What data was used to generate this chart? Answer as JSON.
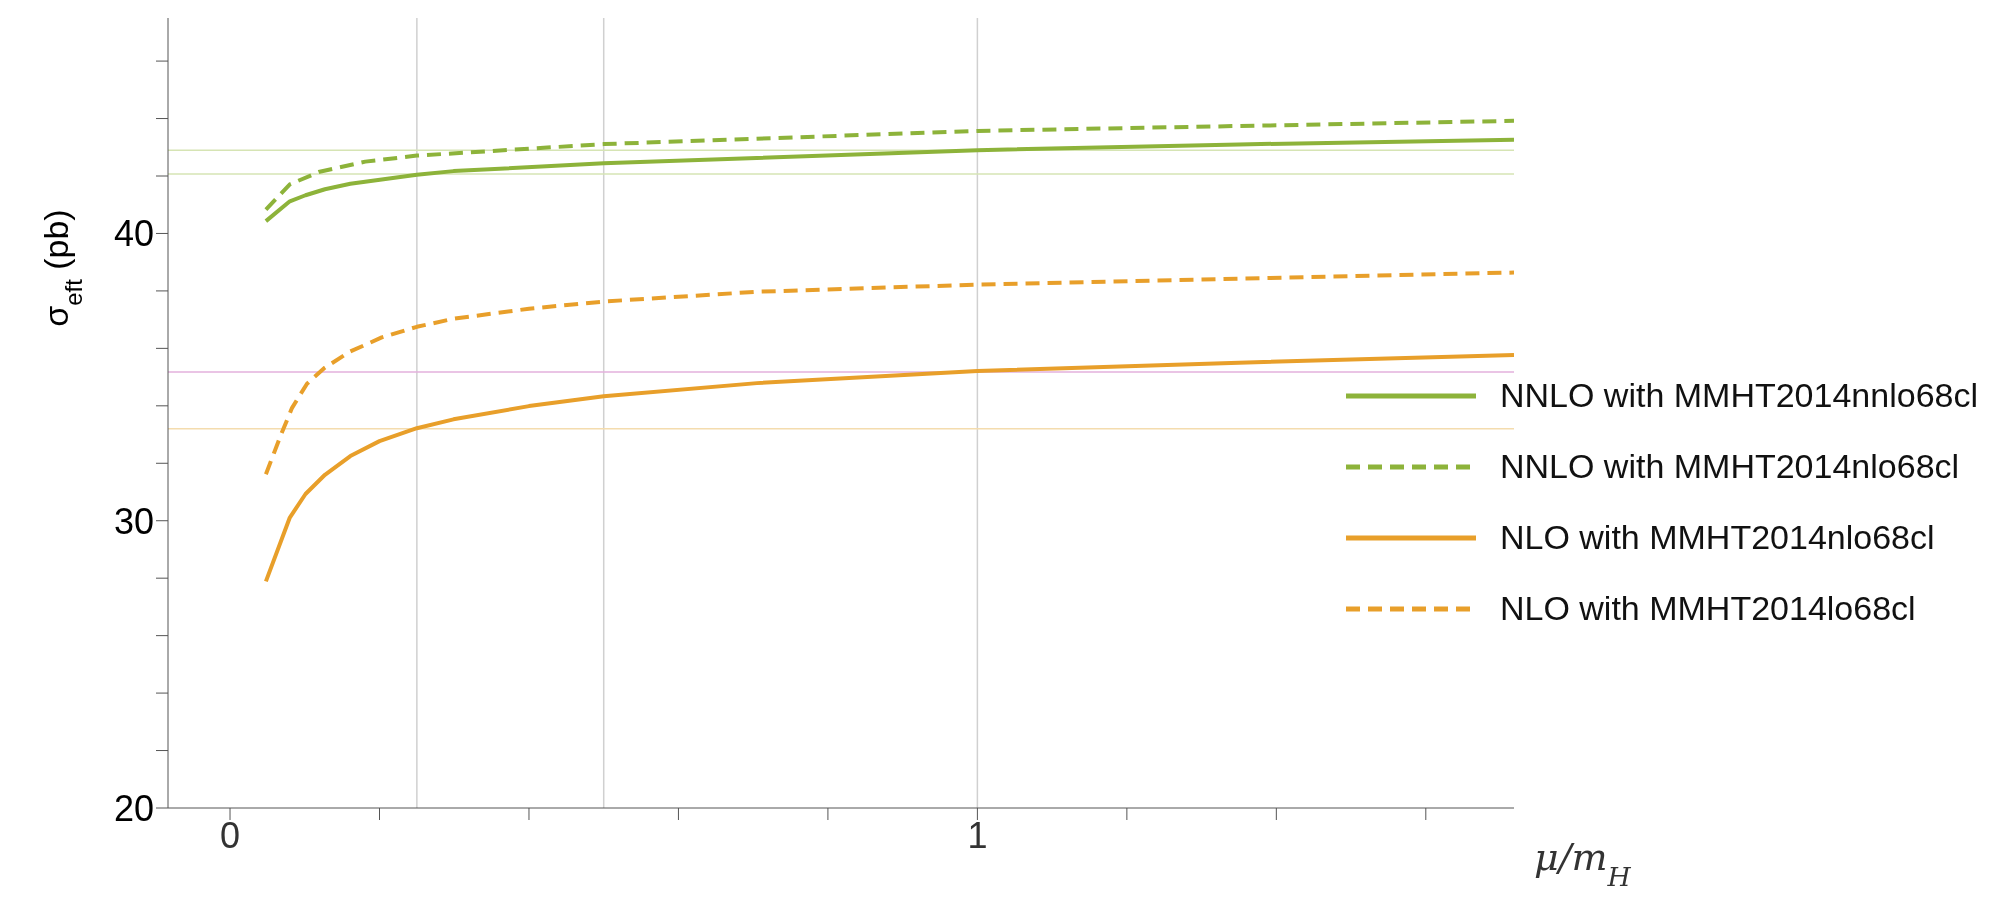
{
  "chart_data": {
    "type": "line",
    "xlabel": "μ/m$_{H}$",
    "ylabel": "σ$_{eft}$ (pb)",
    "xlim": [
      -0.083,
      1.718
    ],
    "ylim": [
      20,
      47.5
    ],
    "xticks": [
      0,
      {
        "value": 0.2,
        "label": null
      },
      {
        "value": 0.4,
        "label": null
      },
      {
        "value": 0.6,
        "label": null
      },
      {
        "value": 0.8,
        "label": null
      },
      1,
      {
        "value": 1.2,
        "label": null
      },
      {
        "value": 1.4,
        "label": null
      },
      {
        "value": 1.6,
        "label": null
      }
    ],
    "yticks": [
      20,
      {
        "value": 22,
        "label": null
      },
      {
        "value": 24,
        "label": null
      },
      {
        "value": 26,
        "label": null
      },
      {
        "value": 28,
        "label": null
      },
      30,
      {
        "value": 32,
        "label": null
      },
      {
        "value": 34,
        "label": null
      },
      {
        "value": 36,
        "label": null
      },
      {
        "value": 38,
        "label": null
      },
      40,
      {
        "value": 42,
        "label": null
      },
      {
        "value": 44,
        "label": null
      },
      {
        "value": 46,
        "label": null
      }
    ],
    "legend": "bottom right",
    "marker": "none",
    "ref_lines": [
      {
        "axis": "x",
        "value": 0.25,
        "color": "#d0d0d0"
      },
      {
        "axis": "x",
        "value": 0.5,
        "color": "#d0d0d0"
      },
      {
        "axis": "x",
        "value": 1,
        "color": "#d0d0d0"
      },
      {
        "axis": "y",
        "value": 42.9,
        "color": "#d6e4b4"
      },
      {
        "axis": "y",
        "value": 42.07,
        "color": "#d6e4b4"
      },
      {
        "axis": "y",
        "value": 35.18,
        "color": "#e3b0dc"
      },
      {
        "axis": "y",
        "value": 33.2,
        "color": "#f4dcae"
      }
    ],
    "series": [
      {
        "name": "NNLO with MMHT2014nnlo68cl",
        "color": "#8db33a",
        "line_style": "solid",
        "x": [
          0.048,
          0.08,
          0.101,
          0.127,
          0.161,
          0.203,
          0.25,
          0.299,
          0.5,
          1.0,
          1.35,
          1.718
        ],
        "values": [
          40.43,
          41.12,
          41.33,
          41.54,
          41.73,
          41.88,
          42.04,
          42.17,
          42.44,
          42.9,
          43.1,
          43.26
        ]
      },
      {
        "name": "NNLO with MMHT2014nlo68cl",
        "color": "#8db33a",
        "line_style": "dashed",
        "x": [
          0.048,
          0.08,
          0.12,
          0.181,
          0.25,
          0.5,
          1.0,
          1.718
        ],
        "values": [
          40.83,
          41.71,
          42.15,
          42.5,
          42.71,
          43.11,
          43.57,
          43.92
        ]
      },
      {
        "name": "NLO with MMHT2014nlo68cl",
        "color": "#e89f2a",
        "line_style": "solid",
        "x": [
          0.048,
          0.08,
          0.101,
          0.127,
          0.161,
          0.2,
          0.25,
          0.299,
          0.4,
          0.5,
          0.705,
          1.0,
          1.35,
          1.718
        ],
        "values": [
          27.89,
          30.11,
          30.93,
          31.6,
          32.25,
          32.77,
          33.22,
          33.53,
          33.99,
          34.33,
          34.79,
          35.21,
          35.5,
          35.77
        ]
      },
      {
        "name": "NLO with MMHT2014lo68cl",
        "color": "#e89f2a",
        "line_style": "dashed",
        "x": [
          0.048,
          0.068,
          0.083,
          0.103,
          0.127,
          0.16,
          0.203,
          0.25,
          0.299,
          0.4,
          0.5,
          0.705,
          1.0,
          1.718
        ],
        "values": [
          31.62,
          32.98,
          33.93,
          34.77,
          35.33,
          35.88,
          36.38,
          36.75,
          37.03,
          37.38,
          37.63,
          37.97,
          38.22,
          38.64
        ]
      }
    ]
  }
}
